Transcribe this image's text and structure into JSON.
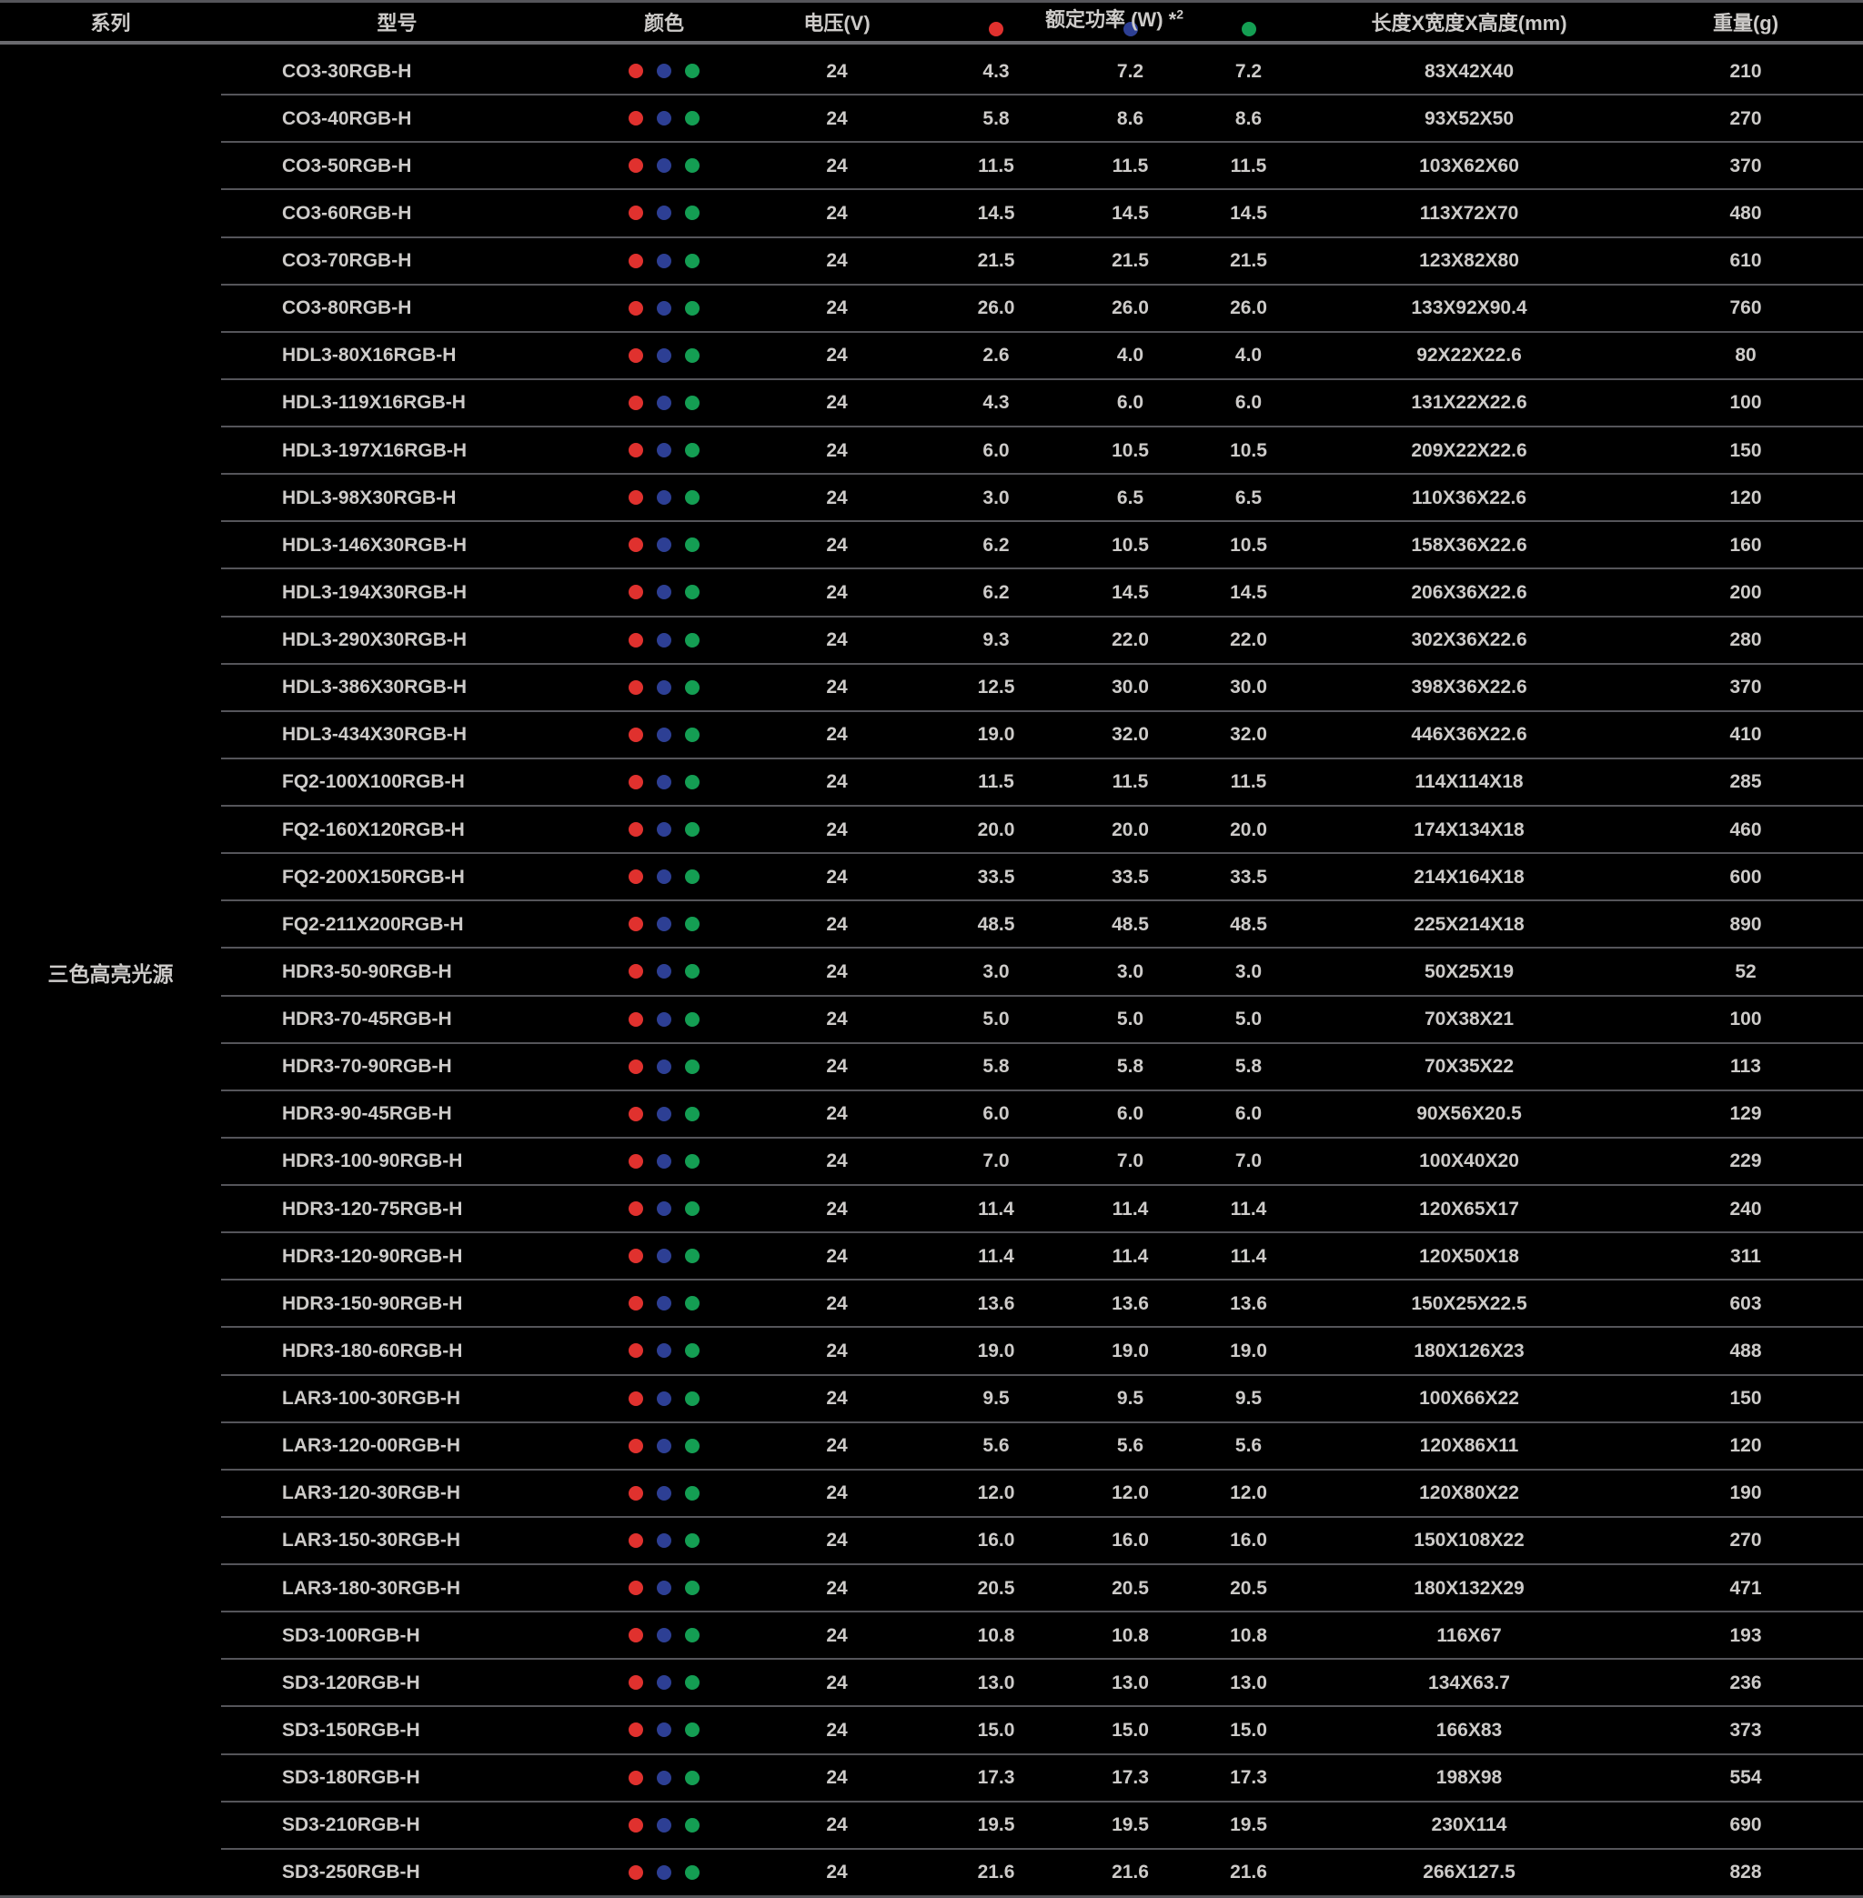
{
  "table": {
    "headers": {
      "series": "系列",
      "model": "型号",
      "color": "颜色",
      "voltage": "电压(V)",
      "power_group": "额定功率 (W)",
      "power_note": "*",
      "power_note_sup": "2",
      "dimensions": "长度X宽度X高度(mm)",
      "weight": "重量(g)"
    },
    "series_label": "三色高亮光源",
    "colors": {
      "red": "#e0312e",
      "blue": "#2d3f94",
      "green": "#149e53"
    },
    "rows": [
      {
        "model": "CO3-30RGB-H",
        "voltage": "24",
        "power_r": "4.3",
        "power_b": "7.2",
        "power_g": "7.2",
        "dimensions": "83X42X40",
        "weight": "210"
      },
      {
        "model": "CO3-40RGB-H",
        "voltage": "24",
        "power_r": "5.8",
        "power_b": "8.6",
        "power_g": "8.6",
        "dimensions": "93X52X50",
        "weight": "270"
      },
      {
        "model": "CO3-50RGB-H",
        "voltage": "24",
        "power_r": "11.5",
        "power_b": "11.5",
        "power_g": "11.5",
        "dimensions": "103X62X60",
        "weight": "370"
      },
      {
        "model": "CO3-60RGB-H",
        "voltage": "24",
        "power_r": "14.5",
        "power_b": "14.5",
        "power_g": "14.5",
        "dimensions": "113X72X70",
        "weight": "480"
      },
      {
        "model": "CO3-70RGB-H",
        "voltage": "24",
        "power_r": "21.5",
        "power_b": "21.5",
        "power_g": "21.5",
        "dimensions": "123X82X80",
        "weight": "610"
      },
      {
        "model": "CO3-80RGB-H",
        "voltage": "24",
        "power_r": "26.0",
        "power_b": "26.0",
        "power_g": "26.0",
        "dimensions": "133X92X90.4",
        "weight": "760"
      },
      {
        "model": "HDL3-80X16RGB-H",
        "voltage": "24",
        "power_r": "2.6",
        "power_b": "4.0",
        "power_g": "4.0",
        "dimensions": "92X22X22.6",
        "weight": "80"
      },
      {
        "model": "HDL3-119X16RGB-H",
        "voltage": "24",
        "power_r": "4.3",
        "power_b": "6.0",
        "power_g": "6.0",
        "dimensions": "131X22X22.6",
        "weight": "100"
      },
      {
        "model": "HDL3-197X16RGB-H",
        "voltage": "24",
        "power_r": "6.0",
        "power_b": "10.5",
        "power_g": "10.5",
        "dimensions": "209X22X22.6",
        "weight": "150"
      },
      {
        "model": "HDL3-98X30RGB-H",
        "voltage": "24",
        "power_r": "3.0",
        "power_b": "6.5",
        "power_g": "6.5",
        "dimensions": "110X36X22.6",
        "weight": "120"
      },
      {
        "model": "HDL3-146X30RGB-H",
        "voltage": "24",
        "power_r": "6.2",
        "power_b": "10.5",
        "power_g": "10.5",
        "dimensions": "158X36X22.6",
        "weight": "160"
      },
      {
        "model": "HDL3-194X30RGB-H",
        "voltage": "24",
        "power_r": "6.2",
        "power_b": "14.5",
        "power_g": "14.5",
        "dimensions": "206X36X22.6",
        "weight": "200"
      },
      {
        "model": "HDL3-290X30RGB-H",
        "voltage": "24",
        "power_r": "9.3",
        "power_b": "22.0",
        "power_g": "22.0",
        "dimensions": "302X36X22.6",
        "weight": "280"
      },
      {
        "model": "HDL3-386X30RGB-H",
        "voltage": "24",
        "power_r": "12.5",
        "power_b": "30.0",
        "power_g": "30.0",
        "dimensions": "398X36X22.6",
        "weight": "370"
      },
      {
        "model": "HDL3-434X30RGB-H",
        "voltage": "24",
        "power_r": "19.0",
        "power_b": "32.0",
        "power_g": "32.0",
        "dimensions": "446X36X22.6",
        "weight": "410"
      },
      {
        "model": "FQ2-100X100RGB-H",
        "voltage": "24",
        "power_r": "11.5",
        "power_b": "11.5",
        "power_g": "11.5",
        "dimensions": "114X114X18",
        "weight": "285"
      },
      {
        "model": "FQ2-160X120RGB-H",
        "voltage": "24",
        "power_r": "20.0",
        "power_b": "20.0",
        "power_g": "20.0",
        "dimensions": "174X134X18",
        "weight": "460"
      },
      {
        "model": "FQ2-200X150RGB-H",
        "voltage": "24",
        "power_r": "33.5",
        "power_b": "33.5",
        "power_g": "33.5",
        "dimensions": "214X164X18",
        "weight": "600"
      },
      {
        "model": "FQ2-211X200RGB-H",
        "voltage": "24",
        "power_r": "48.5",
        "power_b": "48.5",
        "power_g": "48.5",
        "dimensions": "225X214X18",
        "weight": "890"
      },
      {
        "model": "HDR3-50-90RGB-H",
        "voltage": "24",
        "power_r": "3.0",
        "power_b": "3.0",
        "power_g": "3.0",
        "dimensions": "50X25X19",
        "weight": "52"
      },
      {
        "model": "HDR3-70-45RGB-H",
        "voltage": "24",
        "power_r": "5.0",
        "power_b": "5.0",
        "power_g": "5.0",
        "dimensions": "70X38X21",
        "weight": "100"
      },
      {
        "model": "HDR3-70-90RGB-H",
        "voltage": "24",
        "power_r": "5.8",
        "power_b": "5.8",
        "power_g": "5.8",
        "dimensions": "70X35X22",
        "weight": "113"
      },
      {
        "model": "HDR3-90-45RGB-H",
        "voltage": "24",
        "power_r": "6.0",
        "power_b": "6.0",
        "power_g": "6.0",
        "dimensions": "90X56X20.5",
        "weight": "129"
      },
      {
        "model": "HDR3-100-90RGB-H",
        "voltage": "24",
        "power_r": "7.0",
        "power_b": "7.0",
        "power_g": "7.0",
        "dimensions": "100X40X20",
        "weight": "229"
      },
      {
        "model": "HDR3-120-75RGB-H",
        "voltage": "24",
        "power_r": "11.4",
        "power_b": "11.4",
        "power_g": "11.4",
        "dimensions": "120X65X17",
        "weight": "240"
      },
      {
        "model": "HDR3-120-90RGB-H",
        "voltage": "24",
        "power_r": "11.4",
        "power_b": "11.4",
        "power_g": "11.4",
        "dimensions": "120X50X18",
        "weight": "311"
      },
      {
        "model": "HDR3-150-90RGB-H",
        "voltage": "24",
        "power_r": "13.6",
        "power_b": "13.6",
        "power_g": "13.6",
        "dimensions": "150X25X22.5",
        "weight": "603"
      },
      {
        "model": "HDR3-180-60RGB-H",
        "voltage": "24",
        "power_r": "19.0",
        "power_b": "19.0",
        "power_g": "19.0",
        "dimensions": "180X126X23",
        "weight": "488"
      },
      {
        "model": "LAR3-100-30RGB-H",
        "voltage": "24",
        "power_r": "9.5",
        "power_b": "9.5",
        "power_g": "9.5",
        "dimensions": "100X66X22",
        "weight": "150"
      },
      {
        "model": "LAR3-120-00RGB-H",
        "voltage": "24",
        "power_r": "5.6",
        "power_b": "5.6",
        "power_g": "5.6",
        "dimensions": "120X86X11",
        "weight": "120"
      },
      {
        "model": "LAR3-120-30RGB-H",
        "voltage": "24",
        "power_r": "12.0",
        "power_b": "12.0",
        "power_g": "12.0",
        "dimensions": "120X80X22",
        "weight": "190"
      },
      {
        "model": "LAR3-150-30RGB-H",
        "voltage": "24",
        "power_r": "16.0",
        "power_b": "16.0",
        "power_g": "16.0",
        "dimensions": "150X108X22",
        "weight": "270"
      },
      {
        "model": "LAR3-180-30RGB-H",
        "voltage": "24",
        "power_r": "20.5",
        "power_b": "20.5",
        "power_g": "20.5",
        "dimensions": "180X132X29",
        "weight": "471"
      },
      {
        "model": "SD3-100RGB-H",
        "voltage": "24",
        "power_r": "10.8",
        "power_b": "10.8",
        "power_g": "10.8",
        "dimensions": "116X67",
        "weight": "193"
      },
      {
        "model": "SD3-120RGB-H",
        "voltage": "24",
        "power_r": "13.0",
        "power_b": "13.0",
        "power_g": "13.0",
        "dimensions": "134X63.7",
        "weight": "236"
      },
      {
        "model": "SD3-150RGB-H",
        "voltage": "24",
        "power_r": "15.0",
        "power_b": "15.0",
        "power_g": "15.0",
        "dimensions": "166X83",
        "weight": "373"
      },
      {
        "model": "SD3-180RGB-H",
        "voltage": "24",
        "power_r": "17.3",
        "power_b": "17.3",
        "power_g": "17.3",
        "dimensions": "198X98",
        "weight": "554"
      },
      {
        "model": "SD3-210RGB-H",
        "voltage": "24",
        "power_r": "19.5",
        "power_b": "19.5",
        "power_g": "19.5",
        "dimensions": "230X114",
        "weight": "690"
      },
      {
        "model": "SD3-250RGB-H",
        "voltage": "24",
        "power_r": "21.6",
        "power_b": "21.6",
        "power_g": "21.6",
        "dimensions": "266X127.5",
        "weight": "828"
      }
    ]
  }
}
